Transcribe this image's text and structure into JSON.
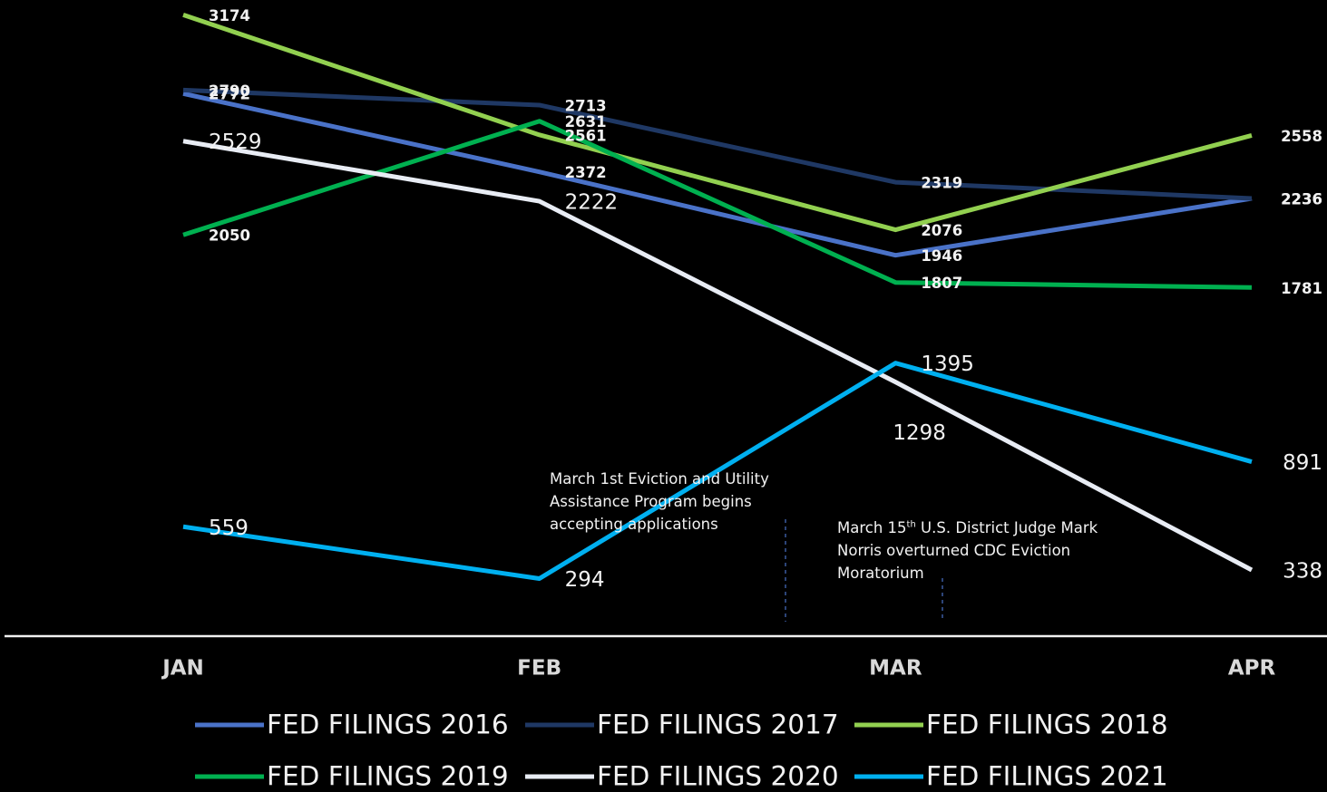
{
  "chart_data": {
    "type": "line",
    "categories": [
      "JAN",
      "FEB",
      "MAR",
      "APR"
    ],
    "series": [
      {
        "name": "FED FILINGS 2016",
        "color": "#4a72c8",
        "values": [
          2772,
          2372,
          1946,
          2236
        ]
      },
      {
        "name": "FED FILINGS 2017",
        "color": "#1f3864",
        "values": [
          2790,
          2713,
          2319,
          2236
        ]
      },
      {
        "name": "FED FILINGS 2018",
        "color": "#92d050",
        "values": [
          3174,
          2561,
          2076,
          2558
        ]
      },
      {
        "name": "FED FILINGS 2019",
        "color": "#00b050",
        "values": [
          2050,
          2631,
          1807,
          1781
        ]
      },
      {
        "name": "FED FILINGS 2020",
        "color": "#e8ecf4",
        "values": [
          2529,
          2222,
          1298,
          338
        ]
      },
      {
        "name": "FED FILINGS 2021",
        "color": "#00b0f0",
        "values": [
          559,
          294,
          1395,
          891
        ]
      }
    ],
    "ylim": [
      0,
      3250
    ],
    "annotations": [
      [
        "March 1st Eviction and Utility Assistance Program begins accepting applications"
      ],
      [
        "March 15",
        "th",
        " U.S. District Judge Mark Norris overturned CDC Eviction Moratorium"
      ]
    ]
  }
}
